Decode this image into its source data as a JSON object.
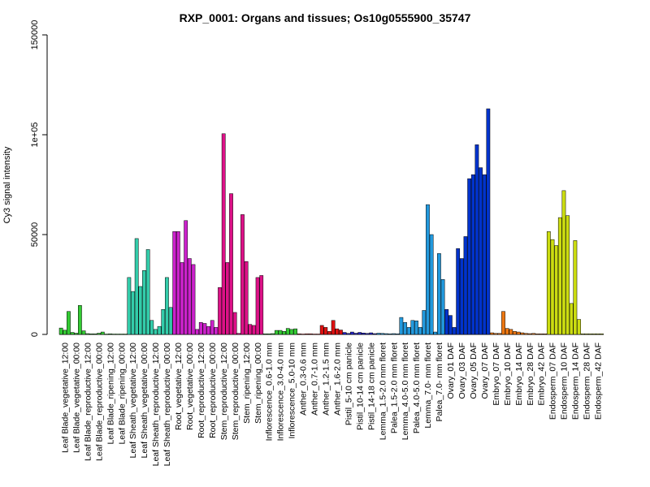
{
  "chart_data": {
    "type": "bar",
    "title": "RXP_0001: Organs and tissues; Os10g0555900_35747",
    "xlabel": "",
    "ylabel": "Cy3 signal intensity",
    "ylim": [
      0,
      150000
    ],
    "yticks": [
      0,
      50000,
      100000,
      150000
    ],
    "ytick_labels": [
      "0",
      "50000",
      "1e+05",
      "150000"
    ],
    "grid": false,
    "legend": "none",
    "categories": [
      "Leaf Blade_vegetative_12:00",
      "Leaf Blade_vegetative_00:00",
      "Leaf Blade_reproductive_12:00",
      "Leaf Blade_reproductive_00:00",
      "Leaf Blade_ripening_12:00",
      "Leaf Blade_ripening_00:00",
      "Leaf Sheath_vegetative_12:00",
      "Leaf Sheath_vegetative_00:00",
      "Leaf Sheath_reproductive_12:00",
      "Leaf Sheath_reproductive_00:00",
      "Root_vegetative_12:00",
      "Root_vegetative_00:00",
      "Root_reproductive_12:00",
      "Root_reproductive_00:00",
      "Stem_reproductive_12:00",
      "Stem_reproductive_00:00",
      "Stem_ripening_12:00",
      "Stem_ripening_00:00",
      "Inflorescence_0.6-1.0 mm",
      "Inflorescence_3.0-4.0 mm",
      "Inflorescence_5.0-10 mm",
      "Anther_0.3-0.6 mm",
      "Anther_0.7-1.0 mm",
      "Anther_1.2-1.5 mm",
      "Anther_1.6-2.0 mm",
      "Pistil_5-10 cm panicle",
      "Pistil_10-14 cm panicle",
      "Pistil_14-18 cm panicle",
      "Lemma_1.5-2.0 mm floret",
      "Palea_1.5-2.0 mm floret",
      "Lemma_4.0-5.0 mm floret",
      "Palea_4.0-5.0 mm floret",
      "Lemma_7.0- mm floret",
      "Palea_7.0- mm floret",
      "Ovary_01 DAF",
      "Ovary_03 DAF",
      "Ovary_05 DAF",
      "Ovary_07 DAF",
      "Embryo_07 DAF",
      "Embryo_10 DAF",
      "Embryo_14 DAF",
      "Embryo_28 DAF",
      "Embryo_42 DAF",
      "Endosperm_07 DAF",
      "Endosperm_10 DAF",
      "Endosperm_14 DAF",
      "Endosperm_28 DAF",
      "Endosperm_42 DAF"
    ],
    "groups": [
      {
        "color": "#33cc33",
        "n": 6
      },
      {
        "color": "#33ccaa",
        "n": 4
      },
      {
        "color": "#cc22cc",
        "n": 4
      },
      {
        "color": "#dd1188",
        "n": 4
      },
      {
        "color": "#33cc33",
        "n": 3
      },
      {
        "color": "#dd1111",
        "n": 4
      },
      {
        "color": "#2222cc",
        "n": 3
      },
      {
        "color": "#2299dd",
        "n": 6
      },
      {
        "color": "#0033cc",
        "n": 4
      },
      {
        "color": "#ee7711",
        "n": 5
      },
      {
        "color": "#ccdd11",
        "n": 5
      }
    ],
    "replicates": [
      [
        3200,
        2100,
        11500
      ],
      [
        1000,
        600,
        14500
      ],
      [
        1800,
        400,
        300
      ],
      [
        300,
        600,
        1200
      ],
      [
        200,
        300,
        200
      ],
      [
        200,
        200,
        200
      ],
      [
        28500,
        21500,
        48000
      ],
      [
        24000,
        32000,
        42500
      ],
      [
        7000,
        2500,
        4000
      ],
      [
        12500,
        28500,
        13500
      ],
      [
        51500,
        51500,
        36000
      ],
      [
        57000,
        38000,
        35000
      ],
      [
        2500,
        6000,
        5500
      ],
      [
        4000,
        7000,
        3500
      ],
      [
        23500,
        100500,
        36000
      ],
      [
        70500,
        11000,
        500
      ],
      [
        60000,
        36500,
        5000
      ],
      [
        4500,
        28500,
        29500
      ],
      [
        300,
        300,
        400
      ],
      [
        2000,
        2000,
        1500
      ],
      [
        3000,
        2500,
        2800
      ],
      [
        300,
        200,
        300
      ],
      [
        300,
        200,
        200
      ],
      [
        4500,
        3500,
        1500
      ],
      [
        7000,
        2800,
        2200
      ],
      [
        1000,
        500,
        1200
      ],
      [
        600,
        1000,
        700
      ],
      [
        500,
        800,
        400
      ],
      [
        600,
        500,
        400
      ],
      [
        300,
        400,
        300
      ],
      [
        8500,
        6000,
        3500
      ],
      [
        7000,
        6800,
        3500
      ],
      [
        12000,
        65000,
        50000
      ],
      [
        1200,
        40500,
        27500
      ],
      [
        12500,
        9500,
        3500
      ],
      [
        43000,
        38000,
        49000
      ],
      [
        78000,
        80000,
        95000
      ],
      [
        83500,
        80000,
        113000
      ],
      [
        800,
        500,
        500
      ],
      [
        11500,
        3000,
        2500
      ],
      [
        1500,
        1200,
        800
      ],
      [
        500,
        400,
        500
      ],
      [
        300,
        300,
        300
      ],
      [
        51500,
        47500,
        44500
      ],
      [
        58500,
        72000,
        59500
      ],
      [
        15500,
        47000,
        7500
      ],
      [
        300,
        300,
        300
      ],
      [
        300,
        300,
        300
      ]
    ]
  }
}
